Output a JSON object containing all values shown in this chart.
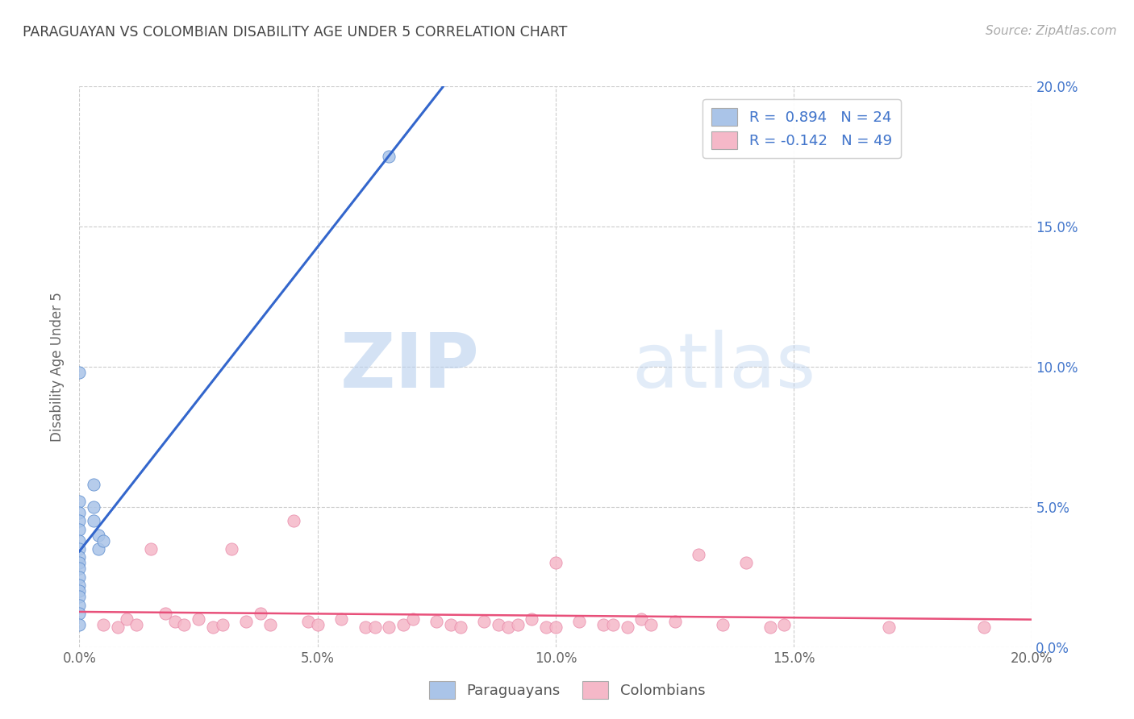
{
  "title": "PARAGUAYAN VS COLOMBIAN DISABILITY AGE UNDER 5 CORRELATION CHART",
  "source": "Source: ZipAtlas.com",
  "ylabel": "Disability Age Under 5",
  "xlim": [
    0.0,
    0.2
  ],
  "ylim": [
    0.0,
    0.2
  ],
  "xtick_vals": [
    0.0,
    0.05,
    0.1,
    0.15,
    0.2
  ],
  "xtick_labels": [
    "0.0%",
    "5.0%",
    "10.0%",
    "15.0%",
    "20.0%"
  ],
  "ytick_vals": [
    0.0,
    0.05,
    0.1,
    0.15,
    0.2
  ],
  "right_ytick_labels": [
    "0.0%",
    "5.0%",
    "10.0%",
    "15.0%",
    "20.0%"
  ],
  "paraguayan_color": "#aac4e8",
  "colombian_color": "#f5b8c8",
  "paraguayan_edge": "#5588cc",
  "colombian_edge": "#e888a8",
  "paraguayan_scatter": [
    [
      0.0,
      0.098
    ],
    [
      0.0,
      0.052
    ],
    [
      0.0,
      0.048
    ],
    [
      0.0,
      0.045
    ],
    [
      0.0,
      0.042
    ],
    [
      0.0,
      0.038
    ],
    [
      0.0,
      0.035
    ],
    [
      0.0,
      0.032
    ],
    [
      0.0,
      0.03
    ],
    [
      0.0,
      0.028
    ],
    [
      0.0,
      0.025
    ],
    [
      0.0,
      0.022
    ],
    [
      0.0,
      0.02
    ],
    [
      0.0,
      0.018
    ],
    [
      0.0,
      0.015
    ],
    [
      0.0,
      0.012
    ],
    [
      0.003,
      0.058
    ],
    [
      0.003,
      0.05
    ],
    [
      0.003,
      0.045
    ],
    [
      0.004,
      0.04
    ],
    [
      0.004,
      0.035
    ],
    [
      0.005,
      0.038
    ],
    [
      0.065,
      0.175
    ],
    [
      0.0,
      0.008
    ]
  ],
  "colombian_scatter": [
    [
      0.005,
      0.008
    ],
    [
      0.008,
      0.007
    ],
    [
      0.01,
      0.01
    ],
    [
      0.012,
      0.008
    ],
    [
      0.015,
      0.035
    ],
    [
      0.018,
      0.012
    ],
    [
      0.02,
      0.009
    ],
    [
      0.022,
      0.008
    ],
    [
      0.025,
      0.01
    ],
    [
      0.028,
      0.007
    ],
    [
      0.03,
      0.008
    ],
    [
      0.032,
      0.035
    ],
    [
      0.035,
      0.009
    ],
    [
      0.038,
      0.012
    ],
    [
      0.04,
      0.008
    ],
    [
      0.045,
      0.045
    ],
    [
      0.048,
      0.009
    ],
    [
      0.05,
      0.008
    ],
    [
      0.055,
      0.01
    ],
    [
      0.06,
      0.007
    ],
    [
      0.062,
      0.007
    ],
    [
      0.065,
      0.007
    ],
    [
      0.068,
      0.008
    ],
    [
      0.07,
      0.01
    ],
    [
      0.075,
      0.009
    ],
    [
      0.078,
      0.008
    ],
    [
      0.08,
      0.007
    ],
    [
      0.085,
      0.009
    ],
    [
      0.088,
      0.008
    ],
    [
      0.09,
      0.007
    ],
    [
      0.092,
      0.008
    ],
    [
      0.095,
      0.01
    ],
    [
      0.098,
      0.007
    ],
    [
      0.1,
      0.007
    ],
    [
      0.1,
      0.03
    ],
    [
      0.105,
      0.009
    ],
    [
      0.11,
      0.008
    ],
    [
      0.112,
      0.008
    ],
    [
      0.115,
      0.007
    ],
    [
      0.118,
      0.01
    ],
    [
      0.12,
      0.008
    ],
    [
      0.125,
      0.009
    ],
    [
      0.13,
      0.033
    ],
    [
      0.135,
      0.008
    ],
    [
      0.14,
      0.03
    ],
    [
      0.145,
      0.007
    ],
    [
      0.148,
      0.008
    ],
    [
      0.17,
      0.007
    ],
    [
      0.19,
      0.007
    ]
  ],
  "blue_line_color": "#3366cc",
  "pink_line_color": "#e8507a",
  "r_paraguayan": "0.894",
  "n_paraguayan": "24",
  "r_colombian": "-0.142",
  "n_colombian": "49",
  "watermark_zip": "ZIP",
  "watermark_atlas": "atlas",
  "background_color": "#ffffff",
  "grid_color": "#cccccc",
  "title_color": "#444444",
  "axis_label_color": "#666666",
  "right_axis_color": "#4477cc",
  "legend_text_color": "#4477cc",
  "legend_r1": "R =  0.894   N = 24",
  "legend_r2": "R = -0.142   N = 49",
  "bottom_legend_labels": [
    "Paraguayans",
    "Colombians"
  ]
}
